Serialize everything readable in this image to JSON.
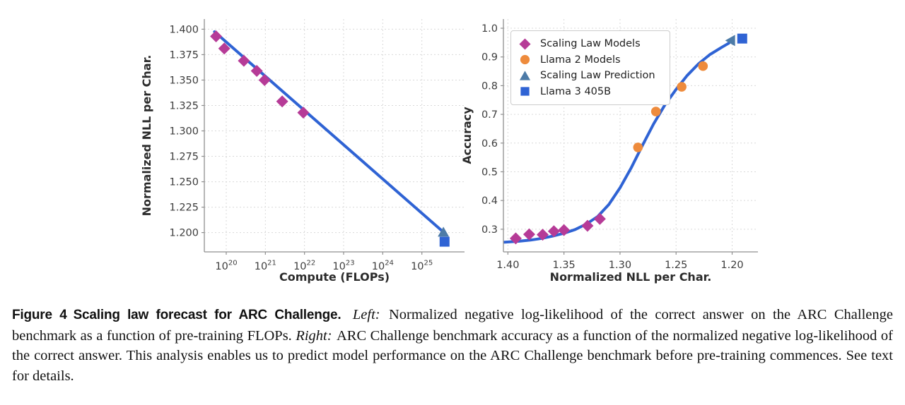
{
  "caption": {
    "label": "Figure 4",
    "title": "Scaling law forecast for ARC Challenge.",
    "left_tag": "Left:",
    "left_body": "Normalized negative log-likelihood of the correct answer on the ARC Challenge benchmark as a function of pre-training FLOPs.",
    "right_tag": "Right:",
    "right_body": "ARC Challenge benchmark accuracy as a function of the normalized negative log-likelihood of the correct answer. This analysis enables us to predict model performance on the ARC Challenge benchmark before pre-training commences. See text for details."
  },
  "colors": {
    "magenta": "#b63b97",
    "orange": "#ee8b3c",
    "steelblue": "#4d7ba7",
    "royalblue": "#2f63d4",
    "grid": "#d9d9d9",
    "spine": "#8f8f8f",
    "tick_text": "#3d3d3d",
    "label_text": "#2b2b2b"
  },
  "chart_data": [
    {
      "type": "scatter",
      "name": "left-plot",
      "title": "",
      "xlabel": "Compute (FLOPs)",
      "ylabel": "Normalized NLL per Char.",
      "xscale": "log10",
      "x_as_exponent": true,
      "xlim": [
        19.44,
        26.09
      ],
      "ylim": [
        1.181,
        1.41
      ],
      "grid": true,
      "xtick_style": "pow10",
      "xticks": [
        {
          "v": 20,
          "label": "20"
        },
        {
          "v": 21,
          "label": "21"
        },
        {
          "v": 22,
          "label": "22"
        },
        {
          "v": 23,
          "label": "23"
        },
        {
          "v": 24,
          "label": "24"
        },
        {
          "v": 25,
          "label": "25"
        }
      ],
      "yticks": [
        {
          "v": 1.2,
          "label": "1.200"
        },
        {
          "v": 1.225,
          "label": "1.225"
        },
        {
          "v": 1.25,
          "label": "1.250"
        },
        {
          "v": 1.275,
          "label": "1.275"
        },
        {
          "v": 1.3,
          "label": "1.300"
        },
        {
          "v": 1.325,
          "label": "1.325"
        },
        {
          "v": 1.35,
          "label": "1.350"
        },
        {
          "v": 1.375,
          "label": "1.375"
        },
        {
          "v": 1.4,
          "label": "1.400"
        }
      ],
      "fit": {
        "style": "line",
        "color_key": "royalblue",
        "points": [
          [
            19.7,
            1.3975
          ],
          [
            25.55,
            1.2005
          ]
        ]
      },
      "series": [
        {
          "name": "Scaling Law Models",
          "marker": "diamond",
          "color_key": "magenta",
          "points": [
            [
              19.74,
              1.393
            ],
            [
              19.95,
              1.381
            ],
            [
              20.45,
              1.369
            ],
            [
              20.78,
              1.359
            ],
            [
              20.98,
              1.35
            ],
            [
              21.43,
              1.329
            ],
            [
              21.97,
              1.318
            ]
          ]
        },
        {
          "name": "Scaling Law Prediction",
          "marker": "triangle-up",
          "color_key": "steelblue",
          "points": [
            [
              25.55,
              1.2005
            ]
          ]
        },
        {
          "name": "Llama 3 405B",
          "marker": "square",
          "color_key": "royalblue",
          "points": [
            [
              25.58,
              1.191
            ]
          ]
        }
      ]
    },
    {
      "type": "scatter",
      "name": "right-plot",
      "title": "",
      "xlabel": "Normalized NLL per Char.",
      "ylabel": "Accuracy",
      "xscale": "linear-reversed",
      "xlim": [
        1.404,
        1.177
      ],
      "ylim": [
        0.221,
        1.032
      ],
      "grid": true,
      "xtick_style": "plain",
      "xticks": [
        {
          "v": 1.4,
          "label": "1.40"
        },
        {
          "v": 1.35,
          "label": "1.35"
        },
        {
          "v": 1.3,
          "label": "1.30"
        },
        {
          "v": 1.25,
          "label": "1.25"
        },
        {
          "v": 1.2,
          "label": "1.20"
        }
      ],
      "yticks": [
        {
          "v": 0.3,
          "label": "0.3"
        },
        {
          "v": 0.4,
          "label": "0.4"
        },
        {
          "v": 0.5,
          "label": "0.5"
        },
        {
          "v": 0.6,
          "label": "0.6"
        },
        {
          "v": 0.7,
          "label": "0.7"
        },
        {
          "v": 0.8,
          "label": "0.8"
        },
        {
          "v": 0.9,
          "label": "0.9"
        },
        {
          "v": 1.0,
          "label": "1.0"
        }
      ],
      "fit": {
        "style": "sigmoid-curve",
        "color_key": "royalblue",
        "points": [
          [
            1.403,
            0.255
          ],
          [
            1.39,
            0.258
          ],
          [
            1.38,
            0.262
          ],
          [
            1.37,
            0.268
          ],
          [
            1.36,
            0.276
          ],
          [
            1.35,
            0.286
          ],
          [
            1.34,
            0.299
          ],
          [
            1.33,
            0.318
          ],
          [
            1.32,
            0.344
          ],
          [
            1.31,
            0.386
          ],
          [
            1.3,
            0.444
          ],
          [
            1.29,
            0.514
          ],
          [
            1.28,
            0.592
          ],
          [
            1.27,
            0.667
          ],
          [
            1.26,
            0.733
          ],
          [
            1.25,
            0.787
          ],
          [
            1.24,
            0.836
          ],
          [
            1.23,
            0.876
          ],
          [
            1.22,
            0.908
          ],
          [
            1.21,
            0.932
          ],
          [
            1.203,
            0.948
          ]
        ]
      },
      "series": [
        {
          "name": "Scaling Law Models",
          "marker": "diamond",
          "color_key": "magenta",
          "points": [
            [
              1.393,
              0.268
            ],
            [
              1.381,
              0.282
            ],
            [
              1.369,
              0.281
            ],
            [
              1.359,
              0.293
            ],
            [
              1.35,
              0.297
            ],
            [
              1.329,
              0.312
            ],
            [
              1.318,
              0.336
            ]
          ]
        },
        {
          "name": "Llama 2 Models",
          "marker": "circle",
          "color_key": "orange",
          "points": [
            [
              1.284,
              0.585
            ],
            [
              1.268,
              0.71
            ],
            [
              1.245,
              0.796
            ],
            [
              1.226,
              0.868
            ]
          ]
        },
        {
          "name": "Scaling Law Prediction",
          "marker": "triangle-left",
          "color_key": "steelblue",
          "points": [
            [
              1.2015,
              0.9575
            ]
          ]
        },
        {
          "name": "Llama 3 405B",
          "marker": "square",
          "color_key": "royalblue",
          "points": [
            [
              1.191,
              0.964
            ]
          ]
        }
      ],
      "legend_position": "upper-left"
    }
  ]
}
